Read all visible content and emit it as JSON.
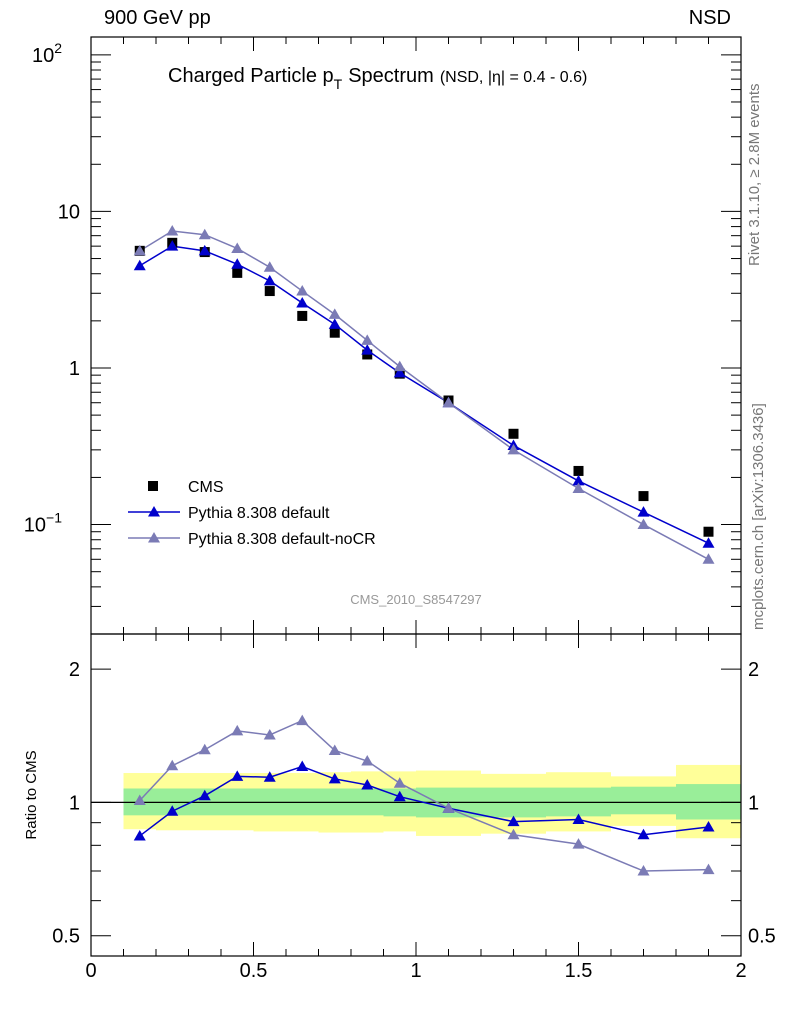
{
  "header": {
    "left": "900 GeV pp",
    "right": "NSD"
  },
  "side_labels": {
    "rivet": "Rivet 3.1.10, ≥ 2.8M events",
    "source": "mcplots.cern.ch [arXiv:1306.3436]"
  },
  "colors": {
    "cms": "#000000",
    "default": "#0000cc",
    "noCR": "#7b7bb5",
    "band_inner": "#99ee99",
    "band_outer": "#ffff99",
    "watermark": "#999999"
  },
  "chart_data": [
    {
      "type": "scatter",
      "panel": "main",
      "title": "Charged Particle p",
      "title_sub": "T",
      "title_suffix": "Spectrum",
      "title_note": "(NSD, |η| = 0.4 - 0.6)",
      "analysis_label": "CMS_2010_S8547297",
      "xlabel": "",
      "ylabel": "",
      "xlim": [
        0,
        2
      ],
      "ylim": [
        0.02,
        130
      ],
      "yscale": "log",
      "y_ticklabels": [
        {
          "value": 100,
          "base": "10",
          "exp": "2"
        },
        {
          "value": 10,
          "base": "10",
          "exp": ""
        },
        {
          "value": 1,
          "base": "1",
          "exp": ""
        },
        {
          "value": 0.1,
          "base": "10",
          "exp": "−1"
        }
      ],
      "legend_position": "bottom-left",
      "series": [
        {
          "name": "CMS",
          "style": "square",
          "x": [
            0.15,
            0.25,
            0.35,
            0.45,
            0.55,
            0.65,
            0.75,
            0.85,
            0.95,
            1.1,
            1.3,
            1.5,
            1.7,
            1.9
          ],
          "y": [
            5.6,
            6.3,
            5.5,
            4.05,
            3.1,
            2.15,
            1.68,
            1.22,
            0.92,
            0.62,
            0.38,
            0.22,
            0.152,
            0.09
          ]
        },
        {
          "name": "Pythia 8.308 default",
          "style": "triangle-line",
          "x": [
            0.15,
            0.25,
            0.35,
            0.45,
            0.55,
            0.65,
            0.75,
            0.85,
            0.95,
            1.1,
            1.3,
            1.5,
            1.7,
            1.9
          ],
          "y": [
            4.5,
            6.0,
            5.6,
            4.6,
            3.6,
            2.6,
            1.9,
            1.3,
            0.93,
            0.6,
            0.32,
            0.19,
            0.12,
            0.076
          ]
        },
        {
          "name": "Pythia 8.308 default-noCR",
          "style": "triangle-line",
          "x": [
            0.15,
            0.25,
            0.35,
            0.45,
            0.55,
            0.65,
            0.75,
            0.85,
            0.95,
            1.1,
            1.3,
            1.5,
            1.7,
            1.9
          ],
          "y": [
            5.6,
            7.5,
            7.1,
            5.8,
            4.4,
            3.1,
            2.2,
            1.5,
            1.02,
            0.6,
            0.3,
            0.17,
            0.1,
            0.06
          ]
        }
      ]
    },
    {
      "type": "line",
      "panel": "ratio",
      "xlabel": "",
      "ylabel": "Ratio to CMS",
      "xlim": [
        0,
        2
      ],
      "ylim": [
        0.45,
        2.4
      ],
      "yscale": "log",
      "x_ticklabels": [
        "0",
        "0.5",
        "1",
        "1.5",
        "2"
      ],
      "y_ticklabels": [
        "0.5",
        "1",
        "2"
      ],
      "bands": {
        "edges": [
          0.1,
          0.2,
          0.3,
          0.4,
          0.5,
          0.6,
          0.7,
          0.8,
          0.9,
          1.0,
          1.2,
          1.4,
          1.6,
          1.8,
          2.0
        ],
        "inner_lo": [
          0.935,
          0.935,
          0.935,
          0.935,
          0.935,
          0.935,
          0.935,
          0.935,
          0.93,
          0.925,
          0.925,
          0.93,
          0.94,
          0.915
        ],
        "inner_hi": [
          1.075,
          1.075,
          1.075,
          1.075,
          1.075,
          1.075,
          1.075,
          1.075,
          1.075,
          1.08,
          1.08,
          1.08,
          1.085,
          1.1
        ],
        "outer_lo": [
          0.87,
          0.865,
          0.865,
          0.865,
          0.86,
          0.86,
          0.855,
          0.855,
          0.86,
          0.84,
          0.85,
          0.86,
          0.885,
          0.83
        ],
        "outer_hi": [
          1.165,
          1.165,
          1.165,
          1.165,
          1.165,
          1.165,
          1.17,
          1.175,
          1.175,
          1.18,
          1.16,
          1.17,
          1.145,
          1.215
        ]
      },
      "series": [
        {
          "name": "Pythia 8.308 default",
          "x": [
            0.15,
            0.25,
            0.35,
            0.45,
            0.55,
            0.65,
            0.75,
            0.85,
            0.95,
            1.1,
            1.3,
            1.5,
            1.7,
            1.9
          ],
          "y": [
            0.84,
            0.955,
            1.035,
            1.145,
            1.14,
            1.205,
            1.13,
            1.095,
            1.03,
            0.97,
            0.905,
            0.915,
            0.845,
            0.88
          ]
        },
        {
          "name": "Pythia 8.308 default-noCR",
          "x": [
            0.15,
            0.25,
            0.35,
            0.45,
            0.55,
            0.65,
            0.75,
            0.85,
            0.95,
            1.1,
            1.3,
            1.5,
            1.7,
            1.9
          ],
          "y": [
            1.01,
            1.21,
            1.315,
            1.45,
            1.42,
            1.53,
            1.31,
            1.24,
            1.105,
            0.97,
            0.845,
            0.805,
            0.7,
            0.705
          ]
        }
      ]
    }
  ]
}
